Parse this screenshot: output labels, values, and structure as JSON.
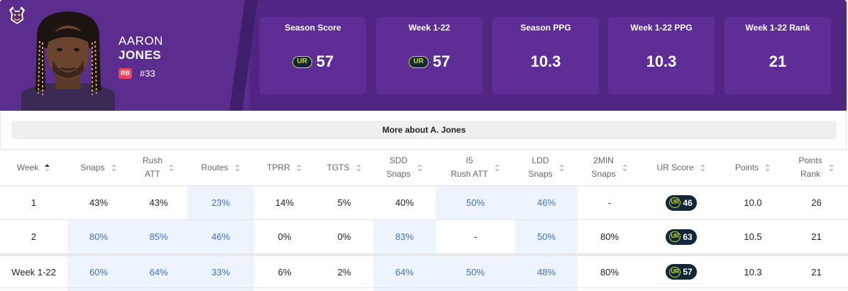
{
  "player": {
    "first_name": "AARON",
    "last_name": "JONES",
    "position": "RB",
    "jersey": "#33"
  },
  "stat_cards": [
    {
      "label": "Season Score",
      "value": "57",
      "ur_logo": true
    },
    {
      "label": "Week 1-22",
      "value": "57",
      "ur_logo": true
    },
    {
      "label": "Season PPG",
      "value": "10.3",
      "ur_logo": false
    },
    {
      "label": "Week 1-22 PPG",
      "value": "10.3",
      "ur_logo": false
    },
    {
      "label": "Week 1-22 Rank",
      "value": "21",
      "ur_logo": false
    }
  ],
  "ur_logo_text": "UR",
  "more_button": "More about A. Jones",
  "table": {
    "headers": [
      {
        "line1": "Week",
        "line2": ""
      },
      {
        "line1": "Snaps",
        "line2": ""
      },
      {
        "line1": "Rush",
        "line2": "ATT"
      },
      {
        "line1": "Routes",
        "line2": ""
      },
      {
        "line1": "TPRR",
        "line2": ""
      },
      {
        "line1": "TGTS",
        "line2": ""
      },
      {
        "line1": "SDD",
        "line2": "Snaps"
      },
      {
        "line1": "I5",
        "line2": "Rush ATT"
      },
      {
        "line1": "LDD",
        "line2": "Snaps"
      },
      {
        "line1": "2MIN",
        "line2": "Snaps"
      },
      {
        "line1": "UR Score",
        "line2": ""
      },
      {
        "line1": "Points",
        "line2": ""
      },
      {
        "line1": "Points",
        "line2": "Rank"
      }
    ],
    "rows": [
      {
        "week": "1",
        "snaps": "43%",
        "rush_att": "43%",
        "routes": "23%",
        "tprr": "14%",
        "tgts": "5%",
        "sdd_snaps": "40%",
        "i5_rush_att": "50%",
        "ldd_snaps": "46%",
        "two_min_snaps": "-",
        "ur_score": "46",
        "points": "10.0",
        "points_rank": "26"
      },
      {
        "week": "2",
        "snaps": "80%",
        "rush_att": "85%",
        "routes": "46%",
        "tprr": "0%",
        "tgts": "0%",
        "sdd_snaps": "83%",
        "i5_rush_att": "-",
        "ldd_snaps": "50%",
        "two_min_snaps": "80%",
        "ur_score": "63",
        "points": "10.5",
        "points_rank": "21"
      }
    ],
    "total": {
      "week": "Week 1-22",
      "snaps": "60%",
      "rush_att": "64%",
      "routes": "33%",
      "tprr": "6%",
      "tgts": "2%",
      "sdd_snaps": "64%",
      "i5_rush_att": "50%",
      "ldd_snaps": "48%",
      "two_min_snaps": "80%",
      "ur_score": "57",
      "points": "10.3",
      "points_rank": "21"
    }
  },
  "colors": {
    "team_purple": "#4f2683",
    "card_purple": "#5e2e96",
    "highlight_bg": "#eef4fd",
    "highlight_text": "#3a6fd8",
    "ur_badge": "#12283a",
    "ur_accent": "#c9dd2a",
    "position_badge": "#e8455d"
  }
}
